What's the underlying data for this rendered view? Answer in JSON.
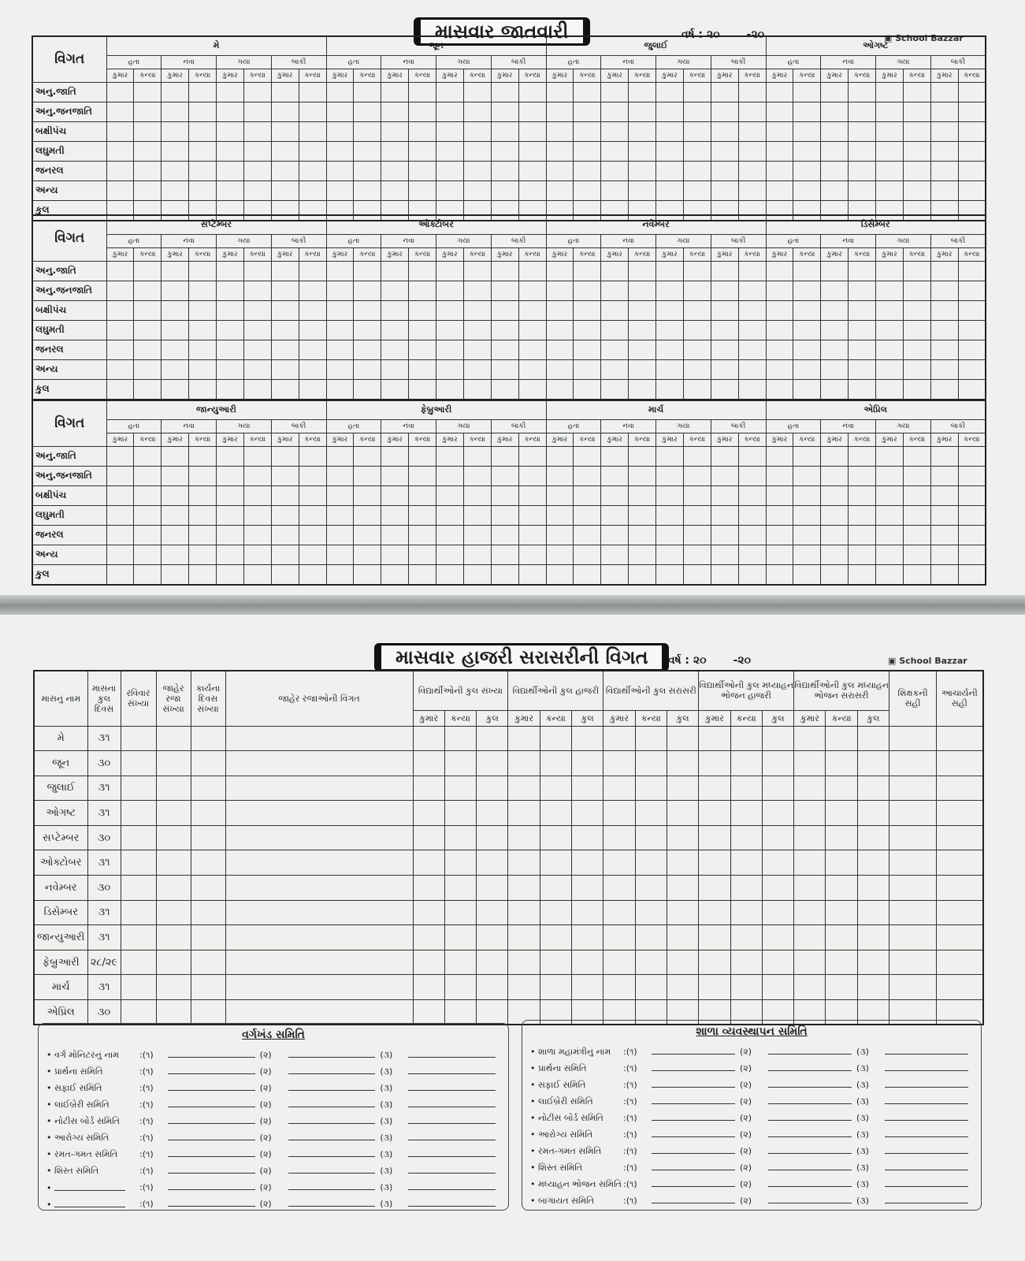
{
  "top": {
    "title": "માસવાર જાતવારી",
    "year_label": "વર્ષ : ૨૦",
    "year_suffix": "-૨૦",
    "brand": "School Bazzar",
    "row_header": "વિગત",
    "categories": [
      "હતા",
      "નવા",
      "ગયા",
      "બાકી"
    ],
    "genders": [
      "કુમાર",
      "કન્યા"
    ],
    "rows": [
      "અનુ.જાતિ",
      "અનુ.જનજાતિ",
      "બક્ષીપંચ",
      "લઘુમતી",
      "જનરલ",
      "અન્ય",
      "કુલ"
    ],
    "blocks": [
      [
        "મે",
        "જૂન",
        "જુલાઈ",
        "ઓગષ્ટ"
      ],
      [
        "સપ્ટેમ્બર",
        "ઓક્ટોબર",
        "નવેમ્બર",
        "ડિસેમ્બર"
      ],
      [
        "જાન્યુઆરી",
        "ફેબ્રુઆરી",
        "માર્ચ",
        "એપ્રિલ"
      ]
    ]
  },
  "bottom": {
    "title": "માસવાર હાજરી સરાસરીની વિગત",
    "year_label": "વર્ષ : ૨૦",
    "year_suffix": "-૨૦",
    "brand": "School Bazzar",
    "headers": [
      "માસનું નામ",
      "માસના કુલ દિવસ",
      "રવિવાર સંખ્યા",
      "જાહેર રજા સંખ્યા",
      "કાર્યના દિવસ સંખ્યા",
      "જાહેર રજાઓની વિગત"
    ],
    "groups": [
      "વિદ્યાર્થીઓની કુલ સંખ્યા",
      "વિદ્યાર્થીઓની કુલ હાજરી",
      "વિદ્યાર્થીઓની કુલ સરાસરી",
      "વિદ્યાર્થીઓની કુલ મધ્યાહન ભોજન હાજરી",
      "વિદ્યાર્થીઓની કુલ મધ્યાહન ભોજન સરાસરી"
    ],
    "subcols": [
      "કુમાર",
      "કન્યા",
      "કુલ"
    ],
    "signs": [
      "શિક્ષકની સહી",
      "આચાર્યની સહી"
    ],
    "months": [
      {
        "name": "મે",
        "days": "૩૧"
      },
      {
        "name": "જૂન",
        "days": "૩૦"
      },
      {
        "name": "જુલાઈ",
        "days": "૩૧"
      },
      {
        "name": "ઓગષ્ટ",
        "days": "૩૧"
      },
      {
        "name": "સપ્ટેમ્બર",
        "days": "૩૦"
      },
      {
        "name": "ઓક્ટોબર",
        "days": "૩૧"
      },
      {
        "name": "નવેમ્બર",
        "days": "૩૦"
      },
      {
        "name": "ડિસેમ્બર",
        "days": "૩૧"
      },
      {
        "name": "જાન્યુઆરી",
        "days": "૩૧"
      },
      {
        "name": "ફેબ્રુઆરી",
        "days": "૨૮/૨૯"
      },
      {
        "name": "માર્ચ",
        "days": "૩૧"
      },
      {
        "name": "એપ્રિલ",
        "days": "૩૦"
      }
    ]
  },
  "committees": {
    "slots": [
      ":(૧)",
      "(૨)",
      "(૩)"
    ],
    "class": {
      "title": "વર્ગખંડ સમિતિ",
      "items": [
        "વર્ગ મોનિટરનું નામ",
        "પ્રાર્થના સમિતિ",
        "સફાઈ સમિતિ",
        "લાઈબ્રેરી સમિતિ",
        "નોટીસ બોર્ડ સમિતિ",
        "આરોગ્ય સમિતિ",
        "રમત-ગમત સમિતિ",
        "શિસ્ત સમિતિ",
        "",
        ""
      ]
    },
    "school": {
      "title": "શાળા વ્યવસ્થાપન સમિતિ",
      "items": [
        "શાળા મહામંત્રીનું નામ",
        "પ્રાર્થના સમિતિ",
        "સફાઈ સમિતિ",
        "લાઈબ્રેરી સમિતિ",
        "નોટીસ બોર્ડ સમિતિ",
        "આરોગ્ય સમિતિ",
        "રમત-ગમત સમિતિ",
        "શિસ્ત સમિતિ",
        "મધ્યાહન ભોજન સમિતિ",
        "બાગાયત સમિતિ"
      ]
    }
  }
}
